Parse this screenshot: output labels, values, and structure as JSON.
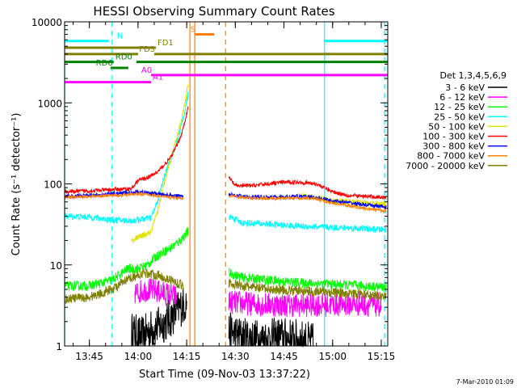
{
  "chart_data": {
    "type": "line",
    "title": "HESSI Observing Summary Count Rates",
    "xlabel": "Start Time (09-Nov-03 13:37:22)",
    "ylabel": "Count Rate (s⁻¹ detector⁻¹)",
    "yscale": "log",
    "ylim": [
      1,
      10000
    ],
    "xlim": [
      "13:37:22",
      "15:17:00"
    ],
    "grid": false,
    "legend_position": "right",
    "x_ticks": [
      "13:45",
      "14:00",
      "14:15",
      "14:30",
      "14:45",
      "15:00",
      "15:15"
    ],
    "y_ticks": [
      "1",
      "10",
      "100",
      "1000",
      "10000"
    ],
    "footer": "7-Mar-2010 01:09",
    "legend": {
      "title": "Det 1,3,4,5,6,9",
      "entries": [
        {
          "label": "3 - 6 keV",
          "color": "#000000"
        },
        {
          "label": "6 - 12 keV",
          "color": "#ff00ff"
        },
        {
          "label": "12 - 25 keV",
          "color": "#00ff00"
        },
        {
          "label": "25 - 50 keV",
          "color": "#00ffff"
        },
        {
          "label": "50 - 100 keV",
          "color": "#e0e000"
        },
        {
          "label": "100 - 300 keV",
          "color": "#ff0000"
        },
        {
          "label": "300 - 800 keV",
          "color": "#0000ff"
        },
        {
          "label": "800 - 7000 keV",
          "color": "#ff8000"
        },
        {
          "label": "7000 - 20000 keV",
          "color": "#808000"
        }
      ]
    },
    "gaps": [
      [
        "14:16:20",
        "14:27:20"
      ]
    ],
    "flags": [
      {
        "label": "N",
        "color": "#00ffff",
        "segments": [
          [
            "13:37:22",
            "13:51:00"
          ],
          [
            "14:57:30",
            "15:17:00"
          ]
        ],
        "y": 5800,
        "label_at": "13:53:30"
      },
      {
        "label": "S",
        "color": "#ff8000",
        "segments": [
          [
            "14:17:30",
            "14:23:30"
          ]
        ],
        "y": 7000,
        "label_at": "14:16:10"
      },
      {
        "label": "FD1",
        "color": "#808000",
        "segments": [
          [
            "13:37:22",
            "14:05:30"
          ]
        ],
        "y": 4800,
        "label_at": "14:06:00"
      },
      {
        "label": "FD3",
        "color": "#808000",
        "segments": [
          [
            "13:37:22",
            "14:00:00"
          ],
          [
            "14:05:00",
            "15:17:00"
          ]
        ],
        "y": 4000,
        "label_at": "14:00:20"
      },
      {
        "label": "RD0",
        "color": "#008000",
        "segments": [
          [
            "13:37:22",
            "13:52:30"
          ],
          [
            "13:59:30",
            "15:17:00"
          ]
        ],
        "y": 3200,
        "label_at": "13:53:00"
      },
      {
        "label": "RD6",
        "color": "#008000",
        "segments": [
          [
            "13:51:30",
            "13:57:00"
          ]
        ],
        "y": 2700,
        "label_at": "13:47:00"
      },
      {
        "label": "A0",
        "color": "#ff00ff",
        "segments": [
          [
            "14:04:00",
            "15:17:00"
          ]
        ],
        "y": 2200,
        "label_at": "14:01:00"
      },
      {
        "label": "A1",
        "color": "#ff00ff",
        "segments": [
          [
            "13:37:22",
            "14:04:00"
          ]
        ],
        "y": 1800,
        "label_at": "14:04:30"
      }
    ],
    "vlines": [
      {
        "time": "13:37:22",
        "color": "#00ffff",
        "style": "solid"
      },
      {
        "time": "13:52:00",
        "color": "#00ffff",
        "style": "dashed"
      },
      {
        "time": "14:16:00",
        "color": "#ff8000",
        "style": "solid"
      },
      {
        "time": "14:17:30",
        "color": "#ff8000",
        "style": "solid"
      },
      {
        "time": "14:27:00",
        "color": "#ff8000",
        "style": "dashed"
      },
      {
        "time": "14:57:30",
        "color": "#00ffff",
        "style": "solid"
      },
      {
        "time": "15:16:00",
        "color": "#00ffff",
        "style": "dashed"
      }
    ],
    "series": [
      {
        "name": "3 - 6 keV",
        "color": "#000000",
        "noise": 0.5,
        "segments": [
          {
            "x": [
              "13:58:00",
              "14:01:00",
              "14:04:00",
              "14:07:00",
              "14:10:00",
              "14:13:00",
              "14:15:00"
            ],
            "y": [
              1.5,
              1.3,
              1.6,
              1.8,
              2.2,
              3,
              3.5
            ]
          },
          {
            "x": [
              "14:28:00",
              "14:32:00",
              "14:38:00",
              "14:44:00",
              "14:50:00",
              "14:54:00"
            ],
            "y": [
              1.5,
              1.3,
              1.2,
              1.3,
              1.2,
              1.1
            ]
          }
        ]
      },
      {
        "name": "6 - 12 keV",
        "color": "#ff00ff",
        "noise": 0.3,
        "segments": [
          {
            "x": [
              "13:59:00",
              "14:03:00",
              "14:08:00",
              "14:12:00"
            ],
            "y": [
              4.5,
              5,
              4.5,
              4
            ]
          },
          {
            "x": [
              "14:28:00",
              "14:35:00",
              "14:45:00",
              "14:55:00",
              "15:05:00",
              "15:15:00"
            ],
            "y": [
              3.5,
              3.3,
              3.2,
              3.2,
              3.3,
              3.2
            ]
          }
        ]
      },
      {
        "name": "12 - 25 keV",
        "color": "#00ff00",
        "noise": 0.12,
        "segments": [
          {
            "x": [
              "13:37:22",
              "13:45:00",
              "13:52:00",
              "13:57:00",
              "14:00:00",
              "14:03:00",
              "14:05:00",
              "14:07:00",
              "14:10:00",
              "14:13:00",
              "14:15:30"
            ],
            "y": [
              5.5,
              5.5,
              6.5,
              9,
              9,
              10,
              12,
              14,
              16,
              20,
              26
            ]
          },
          {
            "x": [
              "14:28:00",
              "14:32:00",
              "14:40:00",
              "14:50:00",
              "15:00:00",
              "15:10:00",
              "15:16:30"
            ],
            "y": [
              8,
              7,
              6.5,
              6,
              5.8,
              5.5,
              5.3
            ]
          }
        ]
      },
      {
        "name": "25 - 50 keV",
        "color": "#00ffff",
        "noise": 0.08,
        "segments": [
          {
            "x": [
              "13:37:22",
              "13:45:00",
              "13:52:00",
              "13:58:00",
              "14:00:00",
              "14:04:00",
              "14:06:00",
              "14:08:00",
              "14:10:00",
              "14:12:00",
              "14:13:30",
              "14:14:30",
              "14:15:30"
            ],
            "y": [
              40,
              39,
              36,
              35,
              36,
              38,
              60,
              120,
              200,
              330,
              550,
              800,
              1300
            ]
          },
          {
            "x": [
              "14:28:00",
              "14:32:00",
              "14:40:00",
              "14:50:00",
              "15:00:00",
              "15:10:00",
              "15:16:30"
            ],
            "y": [
              40,
              33,
              32,
              30,
              29,
              28,
              27
            ]
          }
        ]
      },
      {
        "name": "50 - 100 keV",
        "color": "#e0e000",
        "noise": 0.07,
        "segments": [
          {
            "x": [
              "13:58:00",
              "14:00:00",
              "14:04:00",
              "14:06:00",
              "14:08:00",
              "14:10:00",
              "14:12:00",
              "14:13:30",
              "14:14:30",
              "14:15:30"
            ],
            "y": [
              20,
              22,
              25,
              45,
              100,
              200,
              380,
              650,
              1000,
              1800
            ]
          },
          {
            "x": [
              "14:50:00",
              "15:00:00",
              "15:10:00",
              "15:16:30"
            ],
            "y": [
              72,
              62,
              58,
              56
            ]
          }
        ]
      },
      {
        "name": "100 - 300 keV",
        "color": "#ff0000",
        "noise": 0.05,
        "segments": [
          {
            "x": [
              "13:37:22",
              "13:45:00",
              "13:52:00",
              "13:58:00",
              "14:00:00",
              "14:04:00",
              "14:06:00",
              "14:08:00",
              "14:10:00",
              "14:12:00",
              "14:13:30",
              "14:14:30",
              "14:15:30"
            ],
            "y": [
              80,
              82,
              85,
              87,
              110,
              125,
              140,
              170,
              210,
              300,
              420,
              600,
              900
            ]
          },
          {
            "x": [
              "14:28:00",
              "14:30:00",
              "14:35:00",
              "14:40:00",
              "14:45:00",
              "14:50:00",
              "14:55:00",
              "15:00:00",
              "15:05:00",
              "15:10:00",
              "15:16:30"
            ],
            "y": [
              120,
              95,
              95,
              100,
              105,
              105,
              100,
              80,
              72,
              70,
              68
            ]
          }
        ]
      },
      {
        "name": "300 - 800 keV",
        "color": "#0000ff",
        "noise": 0.05,
        "segments": [
          {
            "x": [
              "13:37:22",
              "13:45:00",
              "13:52:00",
              "13:58:00",
              "14:00:00",
              "14:05:00",
              "14:10:00",
              "14:14:00"
            ],
            "y": [
              70,
              72,
              75,
              78,
              80,
              76,
              72,
              70
            ]
          },
          {
            "x": [
              "14:28:00",
              "14:32:00",
              "14:40:00",
              "14:50:00",
              "14:55:00",
              "15:00:00",
              "15:10:00",
              "15:16:30"
            ],
            "y": [
              75,
              70,
              68,
              70,
              68,
              62,
              55,
              52
            ]
          }
        ]
      },
      {
        "name": "800 - 7000 keV",
        "color": "#ff8000",
        "noise": 0.04,
        "segments": [
          {
            "x": [
              "13:37:22",
              "13:45:00",
              "13:52:00",
              "13:58:00",
              "14:00:00",
              "14:05:00",
              "14:10:00",
              "14:14:00"
            ],
            "y": [
              68,
              70,
              72,
              74,
              76,
              72,
              68,
              66
            ]
          },
          {
            "x": [
              "14:28:00",
              "14:32:00",
              "14:40:00",
              "14:50:00",
              "14:55:00",
              "15:00:00",
              "15:10:00",
              "15:16:30"
            ],
            "y": [
              72,
              68,
              66,
              67,
              65,
              58,
              50,
              46
            ]
          }
        ]
      },
      {
        "name": "7000 - 20000 keV",
        "color": "#808000",
        "noise": 0.12,
        "segments": [
          {
            "x": [
              "13:37:22",
              "13:45:00",
              "13:52:00",
              "13:58:00",
              "14:02:00",
              "14:06:00",
              "14:10:00",
              "14:14:00"
            ],
            "y": [
              3.8,
              4,
              5,
              7,
              8,
              7.5,
              6.5,
              5.5
            ]
          },
          {
            "x": [
              "14:28:00",
              "14:32:00",
              "14:40:00",
              "14:50:00",
              "15:00:00",
              "15:10:00",
              "15:16:30"
            ],
            "y": [
              6,
              5.5,
              5,
              4.8,
              4.6,
              4.3,
              4.1
            ]
          }
        ]
      }
    ]
  }
}
